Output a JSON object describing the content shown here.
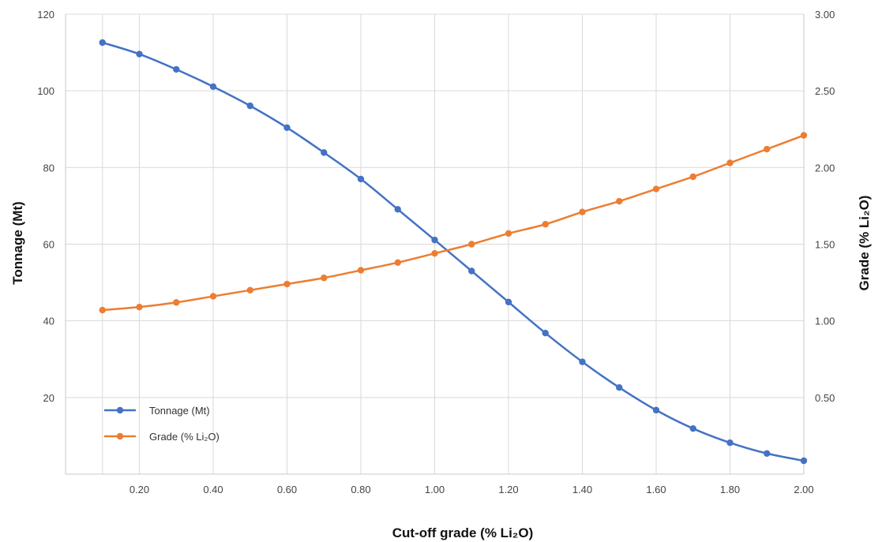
{
  "chart_data": {
    "type": "line",
    "x": [
      0.1,
      0.2,
      0.3,
      0.4,
      0.5,
      0.6,
      0.7,
      0.8,
      0.9,
      1.0,
      1.1,
      1.2,
      1.3,
      1.4,
      1.5,
      1.6,
      1.7,
      1.8,
      1.9,
      2.0
    ],
    "xlabel": "Cut-off grade (% Li₂O)",
    "xlim": [
      0.0,
      2.0
    ],
    "xticks": [
      "0.20",
      "0.40",
      "0.60",
      "0.80",
      "1.00",
      "1.20",
      "1.40",
      "1.60",
      "1.80",
      "2.00"
    ],
    "ylabel_left": "Tonnage (Mt)",
    "ylim_left": [
      0,
      120
    ],
    "yticks_left": [
      "20",
      "40",
      "60",
      "80",
      "100",
      "120"
    ],
    "ylabel_right": "Grade (% Li₂O)",
    "ylim_right": [
      0,
      3.0
    ],
    "yticks_right": [
      "0.50",
      "1.00",
      "1.50",
      "2.00",
      "2.50",
      "3.00"
    ],
    "grid": true,
    "legend_position": "bottom-left",
    "series": [
      {
        "name": "Tonnage (Mt)",
        "axis": "left",
        "color": "#4472C4",
        "values": [
          112.6,
          109.6,
          105.6,
          101.1,
          96.1,
          90.4,
          83.9,
          77.0,
          69.1,
          61.1,
          53.0,
          44.9,
          36.8,
          29.3,
          22.6,
          16.7,
          11.9,
          8.2,
          5.4,
          3.5
        ]
      },
      {
        "name": "Grade (% Li₂O)",
        "axis": "right",
        "color": "#ED7D31",
        "values": [
          1.07,
          1.09,
          1.12,
          1.16,
          1.2,
          1.24,
          1.28,
          1.33,
          1.38,
          1.44,
          1.5,
          1.57,
          1.63,
          1.71,
          1.78,
          1.86,
          1.94,
          2.03,
          2.12,
          2.21
        ]
      }
    ]
  }
}
